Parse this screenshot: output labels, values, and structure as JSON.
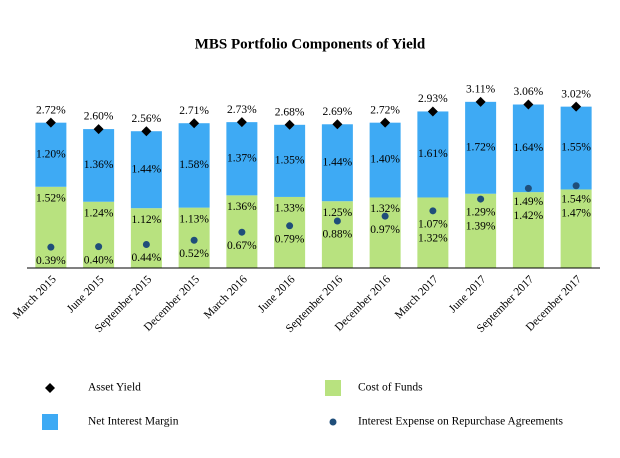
{
  "chart_data": {
    "type": "bar",
    "stacked": true,
    "title": "MBS Portfolio Components of Yield",
    "categories": [
      "March 2015",
      "June 2015",
      "September 2015",
      "December 2015",
      "March 2016",
      "June 2016",
      "September 2016",
      "December 2016",
      "March 2017",
      "June 2017",
      "September 2017",
      "December 2017"
    ],
    "ylim": [
      0,
      3.5
    ],
    "series": [
      {
        "name": "Asset Yield",
        "type": "scatter",
        "marker": "diamond",
        "color": "#000000",
        "values": [
          2.72,
          2.6,
          2.56,
          2.71,
          2.73,
          2.68,
          2.69,
          2.72,
          2.93,
          3.11,
          3.06,
          3.02
        ],
        "value_labels": [
          "2.72%",
          "2.60%",
          "2.56%",
          "2.71%",
          "2.73%",
          "2.68%",
          "2.69%",
          "2.72%",
          "2.93%",
          "3.11%",
          "3.06%",
          "3.02%"
        ]
      },
      {
        "name": "Cost of Funds",
        "type": "bar",
        "color": "#b8e27f",
        "values": [
          1.52,
          1.24,
          1.12,
          1.13,
          1.36,
          1.33,
          1.25,
          1.32,
          1.32,
          1.39,
          1.42,
          1.47
        ],
        "value_labels": [
          "1.52%",
          "1.24%",
          "1.12%",
          "1.13%",
          "1.36%",
          "1.33%",
          "1.25%",
          "1.32%",
          "1.32%",
          "1.39%",
          "1.42%",
          "1.47%"
        ]
      },
      {
        "name": "Net Interest Margin",
        "type": "bar",
        "color": "#3eaaf4",
        "values": [
          1.2,
          1.36,
          1.44,
          1.58,
          1.37,
          1.35,
          1.44,
          1.4,
          1.61,
          1.72,
          1.64,
          1.55
        ],
        "value_labels": [
          "1.20%",
          "1.36%",
          "1.44%",
          "1.58%",
          "1.37%",
          "1.35%",
          "1.44%",
          "1.40%",
          "1.61%",
          "1.72%",
          "1.64%",
          "1.55%"
        ]
      },
      {
        "name": "Interest Expense on Repurchase Agreements",
        "type": "scatter",
        "marker": "dot",
        "color": "#1f4e7a",
        "values": [
          0.39,
          0.4,
          0.44,
          0.52,
          0.67,
          0.79,
          0.88,
          0.97,
          1.07,
          1.29,
          1.49,
          1.54
        ],
        "value_labels": [
          "0.39%",
          "0.40%",
          "0.44%",
          "0.52%",
          "0.67%",
          "0.79%",
          "0.88%",
          "0.97%",
          "1.07%",
          "1.29%",
          "1.49%",
          "1.54%"
        ]
      }
    ]
  }
}
